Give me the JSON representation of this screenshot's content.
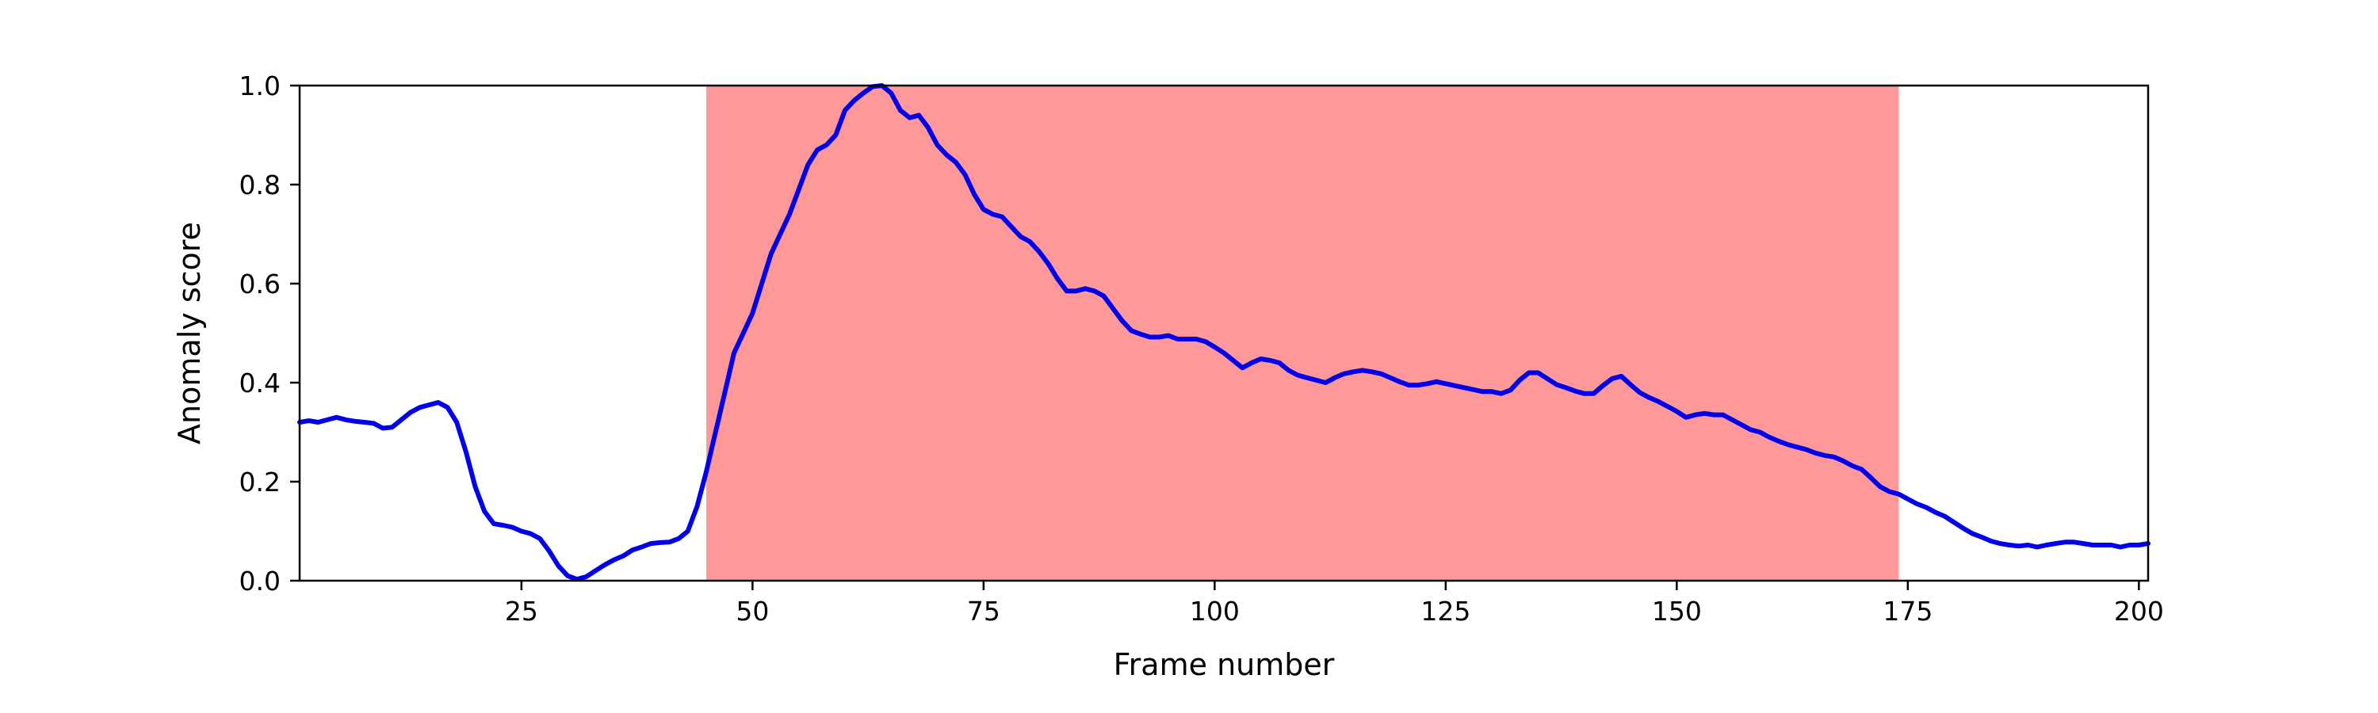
{
  "chart_data": {
    "type": "line",
    "title": "",
    "xlabel": "Frame number",
    "ylabel": "Anomaly score",
    "xlim": [
      1,
      201
    ],
    "ylim": [
      0,
      1
    ],
    "xticks": [
      25,
      50,
      75,
      100,
      125,
      150,
      175,
      200
    ],
    "yticks": [
      0.0,
      0.2,
      0.4,
      0.6,
      0.8,
      1.0
    ],
    "ytick_labels": [
      "0.0",
      "0.2",
      "0.4",
      "0.6",
      "0.8",
      "1.0"
    ],
    "grid": false,
    "legend": "none",
    "highlight": {
      "x_start": 45,
      "x_end": 174,
      "color": "#ff9999"
    },
    "line_color": "#0000ee",
    "points": [
      [
        1,
        0.32
      ],
      [
        2,
        0.323
      ],
      [
        3,
        0.32
      ],
      [
        4,
        0.325
      ],
      [
        5,
        0.33
      ],
      [
        6,
        0.325
      ],
      [
        7,
        0.322
      ],
      [
        8,
        0.32
      ],
      [
        9,
        0.318
      ],
      [
        10,
        0.308
      ],
      [
        11,
        0.31
      ],
      [
        12,
        0.325
      ],
      [
        13,
        0.34
      ],
      [
        14,
        0.35
      ],
      [
        15,
        0.355
      ],
      [
        16,
        0.36
      ],
      [
        17,
        0.35
      ],
      [
        18,
        0.32
      ],
      [
        19,
        0.26
      ],
      [
        20,
        0.19
      ],
      [
        21,
        0.14
      ],
      [
        22,
        0.115
      ],
      [
        23,
        0.112
      ],
      [
        24,
        0.108
      ],
      [
        25,
        0.1
      ],
      [
        26,
        0.095
      ],
      [
        27,
        0.085
      ],
      [
        28,
        0.06
      ],
      [
        29,
        0.03
      ],
      [
        30,
        0.01
      ],
      [
        31,
        0.003
      ],
      [
        32,
        0.008
      ],
      [
        33,
        0.02
      ],
      [
        34,
        0.032
      ],
      [
        35,
        0.042
      ],
      [
        36,
        0.05
      ],
      [
        37,
        0.062
      ],
      [
        38,
        0.068
      ],
      [
        39,
        0.075
      ],
      [
        40,
        0.077
      ],
      [
        41,
        0.078
      ],
      [
        42,
        0.085
      ],
      [
        43,
        0.1
      ],
      [
        44,
        0.15
      ],
      [
        45,
        0.22
      ],
      [
        46,
        0.3
      ],
      [
        47,
        0.38
      ],
      [
        48,
        0.46
      ],
      [
        49,
        0.5
      ],
      [
        50,
        0.54
      ],
      [
        51,
        0.6
      ],
      [
        52,
        0.66
      ],
      [
        53,
        0.7
      ],
      [
        54,
        0.74
      ],
      [
        55,
        0.79
      ],
      [
        56,
        0.84
      ],
      [
        57,
        0.87
      ],
      [
        58,
        0.88
      ],
      [
        59,
        0.9
      ],
      [
        60,
        0.95
      ],
      [
        61,
        0.97
      ],
      [
        62,
        0.985
      ],
      [
        63,
        0.998
      ],
      [
        64,
        1.0
      ],
      [
        65,
        0.985
      ],
      [
        66,
        0.95
      ],
      [
        67,
        0.935
      ],
      [
        68,
        0.94
      ],
      [
        69,
        0.915
      ],
      [
        70,
        0.88
      ],
      [
        71,
        0.86
      ],
      [
        72,
        0.845
      ],
      [
        73,
        0.82
      ],
      [
        74,
        0.78
      ],
      [
        75,
        0.75
      ],
      [
        76,
        0.74
      ],
      [
        77,
        0.735
      ],
      [
        78,
        0.715
      ],
      [
        79,
        0.695
      ],
      [
        80,
        0.685
      ],
      [
        81,
        0.665
      ],
      [
        82,
        0.64
      ],
      [
        83,
        0.61
      ],
      [
        84,
        0.585
      ],
      [
        85,
        0.585
      ],
      [
        86,
        0.59
      ],
      [
        87,
        0.585
      ],
      [
        88,
        0.575
      ],
      [
        89,
        0.55
      ],
      [
        90,
        0.525
      ],
      [
        91,
        0.505
      ],
      [
        92,
        0.498
      ],
      [
        93,
        0.492
      ],
      [
        94,
        0.492
      ],
      [
        95,
        0.495
      ],
      [
        96,
        0.488
      ],
      [
        97,
        0.488
      ],
      [
        98,
        0.488
      ],
      [
        99,
        0.483
      ],
      [
        100,
        0.472
      ],
      [
        101,
        0.46
      ],
      [
        102,
        0.445
      ],
      [
        103,
        0.43
      ],
      [
        104,
        0.44
      ],
      [
        105,
        0.448
      ],
      [
        106,
        0.445
      ],
      [
        107,
        0.44
      ],
      [
        108,
        0.425
      ],
      [
        109,
        0.415
      ],
      [
        110,
        0.41
      ],
      [
        111,
        0.405
      ],
      [
        112,
        0.4
      ],
      [
        113,
        0.41
      ],
      [
        114,
        0.418
      ],
      [
        115,
        0.422
      ],
      [
        116,
        0.425
      ],
      [
        117,
        0.422
      ],
      [
        118,
        0.418
      ],
      [
        119,
        0.41
      ],
      [
        120,
        0.402
      ],
      [
        121,
        0.395
      ],
      [
        122,
        0.395
      ],
      [
        123,
        0.398
      ],
      [
        124,
        0.402
      ],
      [
        125,
        0.398
      ],
      [
        126,
        0.394
      ],
      [
        127,
        0.39
      ],
      [
        128,
        0.386
      ],
      [
        129,
        0.382
      ],
      [
        130,
        0.382
      ],
      [
        131,
        0.378
      ],
      [
        132,
        0.385
      ],
      [
        133,
        0.405
      ],
      [
        134,
        0.42
      ],
      [
        135,
        0.42
      ],
      [
        136,
        0.408
      ],
      [
        137,
        0.396
      ],
      [
        138,
        0.39
      ],
      [
        139,
        0.383
      ],
      [
        140,
        0.378
      ],
      [
        141,
        0.378
      ],
      [
        142,
        0.394
      ],
      [
        143,
        0.408
      ],
      [
        144,
        0.413
      ],
      [
        145,
        0.396
      ],
      [
        146,
        0.38
      ],
      [
        147,
        0.37
      ],
      [
        148,
        0.362
      ],
      [
        149,
        0.352
      ],
      [
        150,
        0.342
      ],
      [
        151,
        0.33
      ],
      [
        152,
        0.335
      ],
      [
        153,
        0.338
      ],
      [
        154,
        0.335
      ],
      [
        155,
        0.335
      ],
      [
        156,
        0.325
      ],
      [
        157,
        0.315
      ],
      [
        158,
        0.305
      ],
      [
        159,
        0.3
      ],
      [
        160,
        0.29
      ],
      [
        161,
        0.282
      ],
      [
        162,
        0.275
      ],
      [
        163,
        0.27
      ],
      [
        164,
        0.265
      ],
      [
        165,
        0.258
      ],
      [
        166,
        0.253
      ],
      [
        167,
        0.25
      ],
      [
        168,
        0.242
      ],
      [
        169,
        0.232
      ],
      [
        170,
        0.225
      ],
      [
        171,
        0.208
      ],
      [
        172,
        0.19
      ],
      [
        173,
        0.18
      ],
      [
        174,
        0.175
      ],
      [
        175,
        0.165
      ],
      [
        176,
        0.155
      ],
      [
        177,
        0.148
      ],
      [
        178,
        0.138
      ],
      [
        179,
        0.13
      ],
      [
        180,
        0.118
      ],
      [
        181,
        0.106
      ],
      [
        182,
        0.095
      ],
      [
        183,
        0.088
      ],
      [
        184,
        0.08
      ],
      [
        185,
        0.075
      ],
      [
        186,
        0.072
      ],
      [
        187,
        0.07
      ],
      [
        188,
        0.072
      ],
      [
        189,
        0.068
      ],
      [
        190,
        0.072
      ],
      [
        191,
        0.075
      ],
      [
        192,
        0.078
      ],
      [
        193,
        0.078
      ],
      [
        194,
        0.075
      ],
      [
        195,
        0.072
      ],
      [
        196,
        0.072
      ],
      [
        197,
        0.072
      ],
      [
        198,
        0.068
      ],
      [
        199,
        0.072
      ],
      [
        200,
        0.072
      ],
      [
        201,
        0.075
      ]
    ]
  }
}
